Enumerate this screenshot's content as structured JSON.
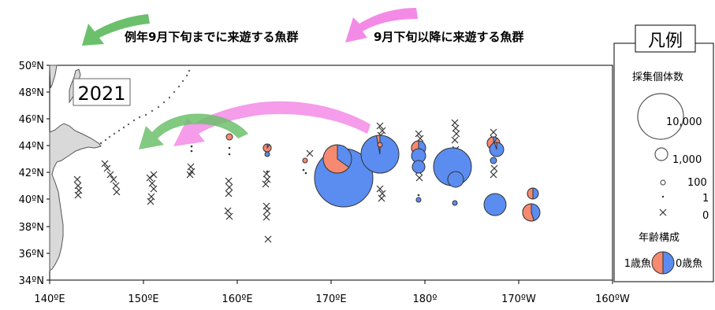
{
  "map": {
    "year": "2021",
    "note_early": "例年9月下旬までに来遊する魚群",
    "note_late": "9月下旬以降に来遊する魚群",
    "lat_labels": [
      "50ºN",
      "48ºN",
      "46ºN",
      "44ºN",
      "42ºN",
      "40ºN",
      "38ºN",
      "36ºN",
      "34ºN"
    ],
    "lon_labels": [
      "140ºE",
      "150ºE",
      "160ºE",
      "170ºE",
      "180º",
      "170ºW",
      "160ºW"
    ],
    "colors": {
      "age1": "#f58a70",
      "age0": "#5b8cf0",
      "land": "#d9d9d9",
      "arrow_green": "#6cc06c",
      "arrow_pink": "#f38be6"
    }
  },
  "legend": {
    "title": "凡例",
    "count_title": "採集個体数",
    "sizes": [
      "10,000",
      "1,000",
      "100",
      "1",
      "0"
    ],
    "age_title": "年齢構成",
    "age1_label": "1歳魚",
    "age0_label": "0歳魚"
  }
}
